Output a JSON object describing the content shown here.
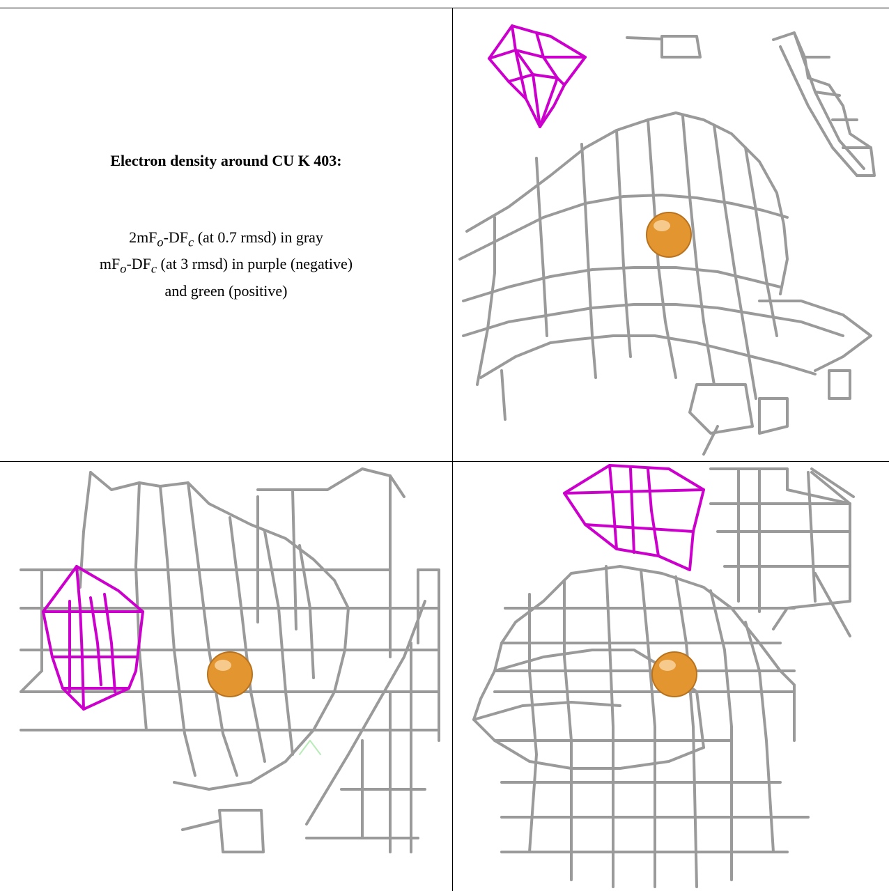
{
  "title": "Electron density around CU K 403:",
  "legend": {
    "line1": "2mFo-DFc (at 0.7 rmsd) in gray",
    "line2": "mFo-DFc (at 3 rmsd) in purple (negative)",
    "line3": "and green (positive)"
  },
  "colors": {
    "map_2fofc": "#8a8a8a",
    "map_negative": "#cc00cc",
    "map_positive": "#33cc33",
    "atom": "#e39530",
    "frame": "#000000"
  },
  "panels": [
    "view-1",
    "view-2",
    "view-3"
  ]
}
